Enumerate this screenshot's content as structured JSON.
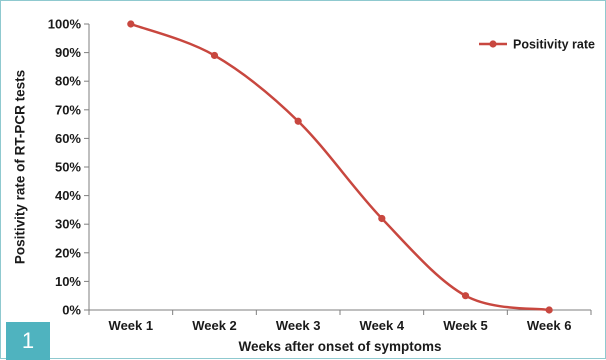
{
  "figure_number": "1",
  "colors": {
    "line": "#c8473f",
    "axis": "#7f7f7f",
    "badge": "#4fb3bf"
  },
  "chart_data": {
    "type": "line",
    "categories": [
      "Week 1",
      "Week 2",
      "Week 3",
      "Week 4",
      "Week 5",
      "Week 6"
    ],
    "series": [
      {
        "name": "Positivity rate",
        "values": [
          100,
          89,
          66,
          32,
          5,
          0
        ]
      }
    ],
    "xlabel": "Weeks after onset of symptoms",
    "ylabel": "Positivity rate of RT-PCR tests",
    "ylim": [
      0,
      100
    ],
    "yticks": [
      "0%",
      "10%",
      "20%",
      "30%",
      "40%",
      "50%",
      "60%",
      "70%",
      "80%",
      "90%",
      "100%"
    ],
    "legend_position": "top-right",
    "grid": false
  }
}
